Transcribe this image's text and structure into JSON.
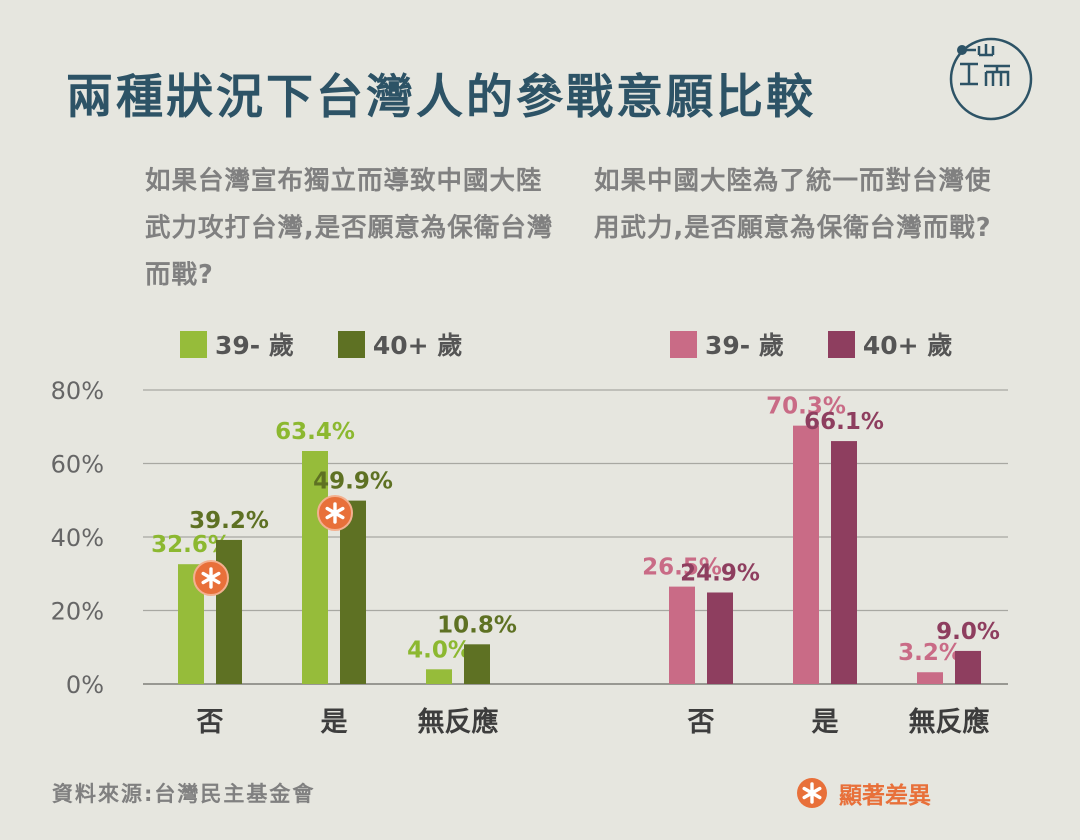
{
  "title": "兩種狀況下台灣人的參戰意願比較",
  "logo": {
    "icon": "initium-logo",
    "text": "端"
  },
  "questions": {
    "left": "如果台灣宣布獨立而導致中國大陸武力攻打台灣,是否願意為保衛台灣而戰?",
    "right": "如果中國大陸為了統一而對台灣使用武力,是否願意為保衛台灣而戰?"
  },
  "legend": {
    "left": [
      {
        "label": "39- 歲",
        "color": "#96bc3a"
      },
      {
        "label": "40+ 歲",
        "color": "#5e7123"
      }
    ],
    "right": [
      {
        "label": "39- 歲",
        "color": "#c96b86"
      },
      {
        "label": "40+ 歲",
        "color": "#8e3e5f"
      }
    ]
  },
  "chart_data": [
    {
      "type": "bar",
      "categories": [
        "否",
        "是",
        "無反應"
      ],
      "series": [
        {
          "name": "39- 歲",
          "values": [
            32.6,
            63.4,
            4.0
          ],
          "labels": [
            "32.6%",
            "63.4%",
            "4.0%"
          ],
          "color": "#96bc3a",
          "label_color": "#8cb830"
        },
        {
          "name": "40+ 歲",
          "values": [
            39.2,
            49.9,
            10.8
          ],
          "labels": [
            "39.2%",
            "49.9%",
            "10.8%"
          ],
          "color": "#5e7123",
          "label_color": "#5e7123"
        }
      ],
      "significant": [
        "否",
        "是"
      ],
      "ylim": [
        0,
        80
      ],
      "yticks": [
        0,
        20,
        40,
        60,
        80
      ],
      "ytick_labels": [
        "0%",
        "20%",
        "40%",
        "60%",
        "80%"
      ],
      "grid": true,
      "legend_position": "top"
    },
    {
      "type": "bar",
      "categories": [
        "否",
        "是",
        "無反應"
      ],
      "series": [
        {
          "name": "39- 歲",
          "values": [
            26.5,
            70.3,
            3.2
          ],
          "labels": [
            "26.5%",
            "70.3%",
            "3.2%"
          ],
          "color": "#c96b86",
          "label_color": "#c96b86"
        },
        {
          "name": "40+ 歲",
          "values": [
            24.9,
            66.1,
            9.0
          ],
          "labels": [
            "24.9%",
            "66.1%",
            "9.0%"
          ],
          "color": "#8e3e5f",
          "label_color": "#8e3e5f"
        }
      ],
      "significant": [],
      "ylim": [
        0,
        80
      ],
      "yticks": [
        0,
        20,
        40,
        60,
        80
      ],
      "grid": true,
      "legend_position": "top"
    }
  ],
  "source": "資料來源:台灣民主基金會",
  "significance_note": {
    "icon": "star-badge-icon",
    "label": "顯著差異",
    "color": "#e8703a"
  }
}
